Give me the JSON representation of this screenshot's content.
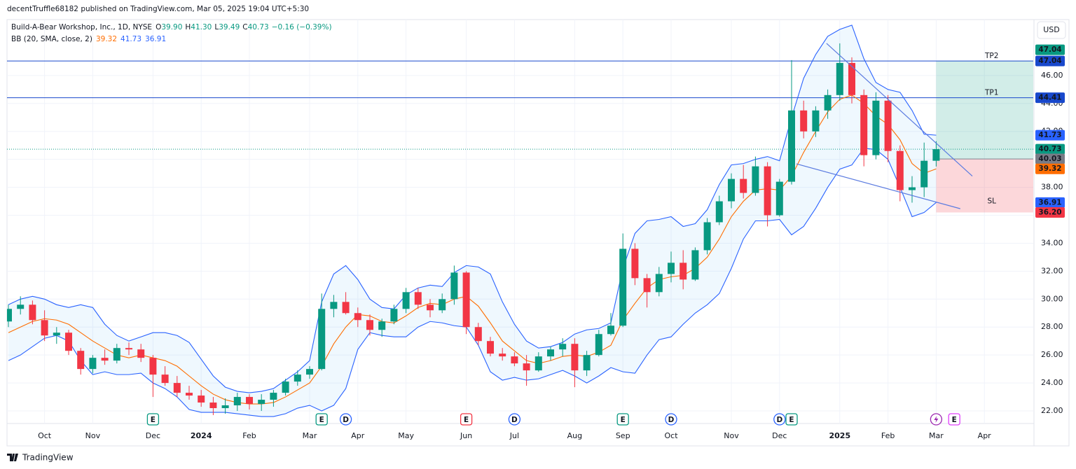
{
  "header": {
    "text": "decentTruffle68182 published on TradingView.com, Mar 05, 2025 19:04 UTC+5:30"
  },
  "footer": {
    "brand": "TradingView"
  },
  "chart_data": {
    "type": "candlestick",
    "currency": "USD",
    "legend": {
      "title": "Build-A-Bear Workshop, Inc., 1D, NYSE",
      "items": [
        {
          "key": "O",
          "value": "39.90"
        },
        {
          "key": "H",
          "value": "41.30"
        },
        {
          "key": "L",
          "value": "39.49"
        },
        {
          "key": "C",
          "value": "40.73"
        }
      ],
      "change": "−0.16 (−0.39%)",
      "color": "#089981"
    },
    "indicator_label": "BB (20, SMA, close, 2)",
    "categories": [
      null,
      null,
      null,
      "Oct",
      null,
      null,
      null,
      "Nov",
      null,
      null,
      null,
      null,
      "Dec",
      null,
      null,
      null,
      "2024",
      null,
      null,
      null,
      "Feb",
      null,
      null,
      null,
      null,
      "Mar",
      null,
      null,
      null,
      "Apr",
      null,
      null,
      null,
      "May",
      null,
      null,
      null,
      null,
      "Jun",
      null,
      null,
      null,
      "Jul",
      null,
      null,
      null,
      null,
      "Aug",
      null,
      null,
      null,
      "Sep",
      null,
      null,
      null,
      "Oct",
      null,
      null,
      null,
      null,
      "Nov",
      null,
      null,
      null,
      "Dec",
      null,
      null,
      null,
      null,
      "2025",
      null,
      null,
      null,
      "Feb",
      null,
      null,
      null,
      "Mar",
      null,
      null,
      null,
      "Apr",
      null,
      null,
      null,
      null
    ],
    "ohlc": {
      "open": [
        28.4,
        29.3,
        29.6,
        28.5,
        27.4,
        27.6,
        26.3,
        25.0,
        25.8,
        25.6,
        26.5,
        26.4,
        25.8,
        24.6,
        24.0,
        23.3,
        23.1,
        22.6,
        22.2,
        22.4,
        23.0,
        22.5,
        22.8,
        23.3,
        24.1,
        24.6,
        25.0,
        29.3,
        29.8,
        29.0,
        28.5,
        27.8,
        28.4,
        29.3,
        30.5,
        29.6,
        29.2,
        30.0,
        31.9,
        28.0,
        27.0,
        26.1,
        25.9,
        25.4,
        24.9,
        25.9,
        26.4,
        26.8,
        24.9,
        26.0,
        27.5,
        28.1,
        33.6,
        31.5,
        30.5,
        31.8,
        32.6,
        31.4,
        33.5,
        35.5,
        37.0,
        38.6,
        37.6,
        39.5,
        36.0,
        38.4,
        43.5,
        42.0,
        43.5,
        44.6,
        46.9,
        44.6,
        40.3,
        44.2,
        40.6,
        37.8,
        38.0,
        39.9,
        null,
        null,
        null,
        null,
        null,
        null,
        null,
        null
      ],
      "high": [
        29.6,
        30.2,
        29.9,
        29.2,
        28.0,
        27.8,
        26.5,
        26.0,
        26.4,
        26.8,
        26.9,
        26.8,
        26.0,
        25.2,
        24.5,
        23.8,
        23.5,
        23.0,
        22.9,
        23.3,
        23.2,
        23.2,
        23.5,
        24.3,
        24.9,
        25.2,
        30.4,
        30.3,
        30.5,
        29.4,
        28.9,
        28.6,
        29.6,
        30.8,
        30.8,
        30.0,
        30.4,
        32.4,
        32.0,
        28.3,
        27.3,
        26.5,
        26.2,
        26.0,
        26.2,
        26.6,
        27.2,
        27.2,
        26.3,
        27.8,
        29.0,
        34.7,
        34.0,
        31.8,
        32.3,
        33.4,
        33.5,
        33.7,
        35.8,
        37.4,
        39.0,
        39.6,
        40.2,
        39.8,
        38.6,
        47.1,
        44.2,
        43.8,
        45.0,
        48.3,
        47.3,
        45.0,
        44.8,
        44.6,
        41.0,
        38.8,
        41.2,
        41.3,
        null,
        null,
        null,
        null,
        null,
        null,
        null,
        null
      ],
      "low": [
        28.0,
        28.9,
        28.2,
        27.0,
        26.8,
        26.0,
        24.6,
        24.7,
        25.3,
        25.4,
        26.0,
        25.5,
        23.0,
        23.8,
        23.0,
        22.8,
        22.3,
        21.7,
        21.8,
        22.0,
        22.1,
        22.0,
        22.3,
        23.1,
        23.8,
        24.3,
        24.9,
        28.7,
        28.9,
        28.0,
        27.4,
        27.3,
        28.2,
        29.0,
        29.3,
        28.7,
        29.0,
        29.6,
        27.5,
        26.7,
        25.9,
        25.6,
        25.2,
        23.8,
        24.8,
        25.6,
        25.9,
        23.7,
        24.5,
        25.9,
        27.4,
        28.0,
        31.0,
        29.4,
        30.2,
        31.2,
        30.7,
        31.3,
        33.2,
        35.3,
        36.5,
        37.2,
        37.4,
        35.2,
        35.9,
        38.2,
        41.5,
        41.6,
        42.9,
        44.2,
        44.0,
        39.5,
        40.0,
        39.8,
        37.0,
        36.9,
        37.3,
        39.49,
        null,
        null,
        null,
        null,
        null,
        null,
        null,
        null
      ],
      "close": [
        29.3,
        29.6,
        28.5,
        27.4,
        27.6,
        26.3,
        25.0,
        25.8,
        25.6,
        26.5,
        26.4,
        25.8,
        24.6,
        24.0,
        23.3,
        23.1,
        22.6,
        22.2,
        22.4,
        23.0,
        22.5,
        22.8,
        23.3,
        24.1,
        24.6,
        25.0,
        29.3,
        29.8,
        29.0,
        28.5,
        27.8,
        28.4,
        29.3,
        30.5,
        29.6,
        29.2,
        30.0,
        31.9,
        28.0,
        27.0,
        26.1,
        25.9,
        25.4,
        24.9,
        25.9,
        26.4,
        26.8,
        24.9,
        26.0,
        27.5,
        28.1,
        33.6,
        31.5,
        30.5,
        31.8,
        32.6,
        31.4,
        33.5,
        35.5,
        37.0,
        38.6,
        37.6,
        39.5,
        36.0,
        38.4,
        43.5,
        42.0,
        43.5,
        44.6,
        46.9,
        44.6,
        40.3,
        44.2,
        40.6,
        37.8,
        38.0,
        39.9,
        40.73,
        null,
        null,
        null,
        null,
        null,
        null,
        null,
        null
      ]
    },
    "up_color": "#089981",
    "down_color": "#f23645",
    "series": [
      {
        "color": "#ff6d00",
        "values": [
          27.6,
          28.0,
          28.4,
          28.6,
          28.5,
          28.2,
          27.6,
          27.0,
          26.5,
          26.0,
          25.8,
          26.0,
          25.8,
          25.6,
          25.2,
          24.5,
          23.8,
          23.2,
          22.8,
          22.6,
          22.5,
          22.5,
          22.6,
          23.0,
          23.5,
          24.0,
          25.2,
          26.8,
          28.0,
          28.9,
          28.8,
          28.4,
          28.3,
          28.8,
          29.4,
          29.7,
          29.6,
          30.0,
          30.2,
          29.5,
          28.3,
          27.0,
          26.3,
          25.6,
          25.4,
          25.6,
          25.9,
          26.0,
          25.9,
          26.2,
          26.7,
          28.5,
          29.7,
          30.8,
          31.4,
          31.6,
          31.7,
          32.2,
          33.0,
          34.3,
          35.9,
          37.0,
          37.8,
          37.9,
          37.8,
          38.8,
          40.5,
          42.0,
          43.4,
          44.3,
          44.6,
          44.0,
          43.1,
          42.5,
          41.4,
          39.7,
          39.0,
          39.32,
          null,
          null,
          null,
          null,
          null,
          null,
          null,
          null
        ]
      },
      {
        "color": "#2962ff",
        "values": [
          29.6,
          30.0,
          30.2,
          30.0,
          29.6,
          29.4,
          29.6,
          29.4,
          28.2,
          27.4,
          27.0,
          27.3,
          27.6,
          27.6,
          27.4,
          26.9,
          25.7,
          24.5,
          23.7,
          23.4,
          23.3,
          23.4,
          23.6,
          24.2,
          24.8,
          25.6,
          29.8,
          31.8,
          32.4,
          31.4,
          30.0,
          29.4,
          29.3,
          30.3,
          30.8,
          31.0,
          30.9,
          31.9,
          32.4,
          32.3,
          31.8,
          29.8,
          28.2,
          27.0,
          26.5,
          26.6,
          26.9,
          27.5,
          27.8,
          27.9,
          28.3,
          32.2,
          34.7,
          35.6,
          35.7,
          35.9,
          35.2,
          35.4,
          36.4,
          38.2,
          39.6,
          39.7,
          40.0,
          40.2,
          39.9,
          43.0,
          45.8,
          47.5,
          48.8,
          49.3,
          49.6,
          47.2,
          45.5,
          45.0,
          44.8,
          43.5,
          41.8,
          41.73,
          null,
          null,
          null,
          null,
          null,
          null,
          null,
          null
        ]
      },
      {
        "color": "#2962ff",
        "values": [
          25.6,
          26.0,
          26.6,
          27.2,
          27.4,
          27.0,
          25.6,
          24.6,
          24.8,
          24.6,
          24.6,
          24.7,
          24.0,
          23.6,
          23.0,
          22.1,
          21.9,
          21.9,
          21.9,
          21.8,
          21.7,
          21.6,
          21.6,
          21.8,
          22.2,
          22.4,
          22.0,
          22.4,
          23.6,
          26.4,
          27.6,
          27.4,
          27.3,
          27.3,
          28.0,
          28.4,
          28.3,
          28.1,
          28.0,
          26.7,
          24.8,
          24.2,
          24.4,
          24.2,
          24.3,
          24.6,
          24.9,
          24.5,
          24.0,
          24.5,
          25.1,
          24.8,
          24.7,
          26.0,
          27.1,
          27.3,
          28.2,
          29.0,
          29.6,
          30.4,
          32.2,
          34.3,
          35.6,
          35.6,
          35.7,
          34.6,
          35.2,
          36.5,
          38.0,
          39.3,
          39.6,
          40.8,
          40.7,
          40.0,
          38.0,
          35.9,
          36.2,
          36.91,
          null,
          null,
          null,
          null,
          null,
          null,
          null,
          null
        ]
      }
    ],
    "band_fill": "rgba(33,150,243,0.07)",
    "ylim": [
      21.1,
      50
    ],
    "yticks": [
      {
        "value": 22,
        "label": "22.00"
      },
      {
        "value": 24,
        "label": "24.00"
      },
      {
        "value": 26,
        "label": "26.00"
      },
      {
        "value": 28,
        "label": "28.00"
      },
      {
        "value": 30,
        "label": "30.00"
      },
      {
        "value": 32,
        "label": "32.00"
      },
      {
        "value": 34,
        "label": "34.00"
      },
      {
        "value": 36,
        "label": "36.00"
      },
      {
        "value": 38,
        "label": "38.00"
      },
      {
        "value": 40,
        "label": "40.00"
      },
      {
        "value": 42,
        "label": "42.00"
      },
      {
        "value": 44,
        "label": "44.00"
      },
      {
        "value": 46,
        "label": "46.00"
      }
    ],
    "grid": true,
    "hlines": [
      {
        "value": 47.04,
        "label": "TP2",
        "color": "#1848cc"
      },
      {
        "value": 44.41,
        "label": "TP1",
        "color": "#1848cc"
      }
    ],
    "last_price_line": {
      "value": 40.73,
      "color": "#089981"
    },
    "trendlines": [
      {
        "from": [
          67.9,
          48.3
        ],
        "to": [
          80,
          38.8
        ],
        "color": "#5b7be0"
      },
      {
        "from": [
          65.4,
          39.68
        ],
        "to": [
          79,
          36.47
        ],
        "color": "#5b7be0"
      }
    ],
    "position": {
      "start": 77,
      "entry": 40.03,
      "target": 47.04,
      "stop": 36.2,
      "stop_label": "SL",
      "target_fill": "rgba(8,153,129,0.18)",
      "stop_fill": "rgba(242,54,69,0.2)"
    },
    "price_labels": [
      {
        "value": 47.04,
        "label": "47.04",
        "color": "#1848cc"
      },
      {
        "value": 47.04,
        "label": "47.04",
        "color": "#089981"
      },
      {
        "value": 44.41,
        "label": "44.41",
        "color": "#1848cc"
      },
      {
        "value": 41.73,
        "label": "41.73",
        "color": "#2962ff"
      },
      {
        "value": 40.73,
        "label": "40.73",
        "color": "#089981"
      },
      {
        "value": 40.03,
        "label": "40.03",
        "color": "#787b86"
      },
      {
        "value": 39.32,
        "label": "39.32",
        "color": "#ff6d00"
      },
      {
        "value": 36.91,
        "label": "36.91",
        "color": "#2962ff"
      },
      {
        "value": 36.2,
        "label": "36.20",
        "color": "#f23645"
      }
    ],
    "events": [
      {
        "category": 12,
        "label": "E",
        "shape": "square",
        "color": "#089981"
      },
      {
        "category": 26,
        "label": "E",
        "shape": "square",
        "color": "#089981"
      },
      {
        "category": 28,
        "label": "D",
        "shape": "circle",
        "color": "#2962ff"
      },
      {
        "category": 38,
        "label": "E",
        "shape": "square",
        "color": "#f23645"
      },
      {
        "category": 42,
        "label": "D",
        "shape": "circle",
        "color": "#2962ff"
      },
      {
        "category": 51,
        "label": "E",
        "shape": "square",
        "color": "#089981"
      },
      {
        "category": 55,
        "label": "D",
        "shape": "circle",
        "color": "#2962ff"
      },
      {
        "category": 64,
        "label": "D",
        "shape": "circle",
        "color": "#2962ff"
      },
      {
        "category": 65,
        "label": "E",
        "shape": "square",
        "color": "#089981"
      },
      {
        "category": 77,
        "shape": "circle",
        "color": "#9c27b0"
      },
      {
        "category": 78.5,
        "label": "E",
        "shape": "square",
        "color": "#e040fb"
      }
    ]
  }
}
